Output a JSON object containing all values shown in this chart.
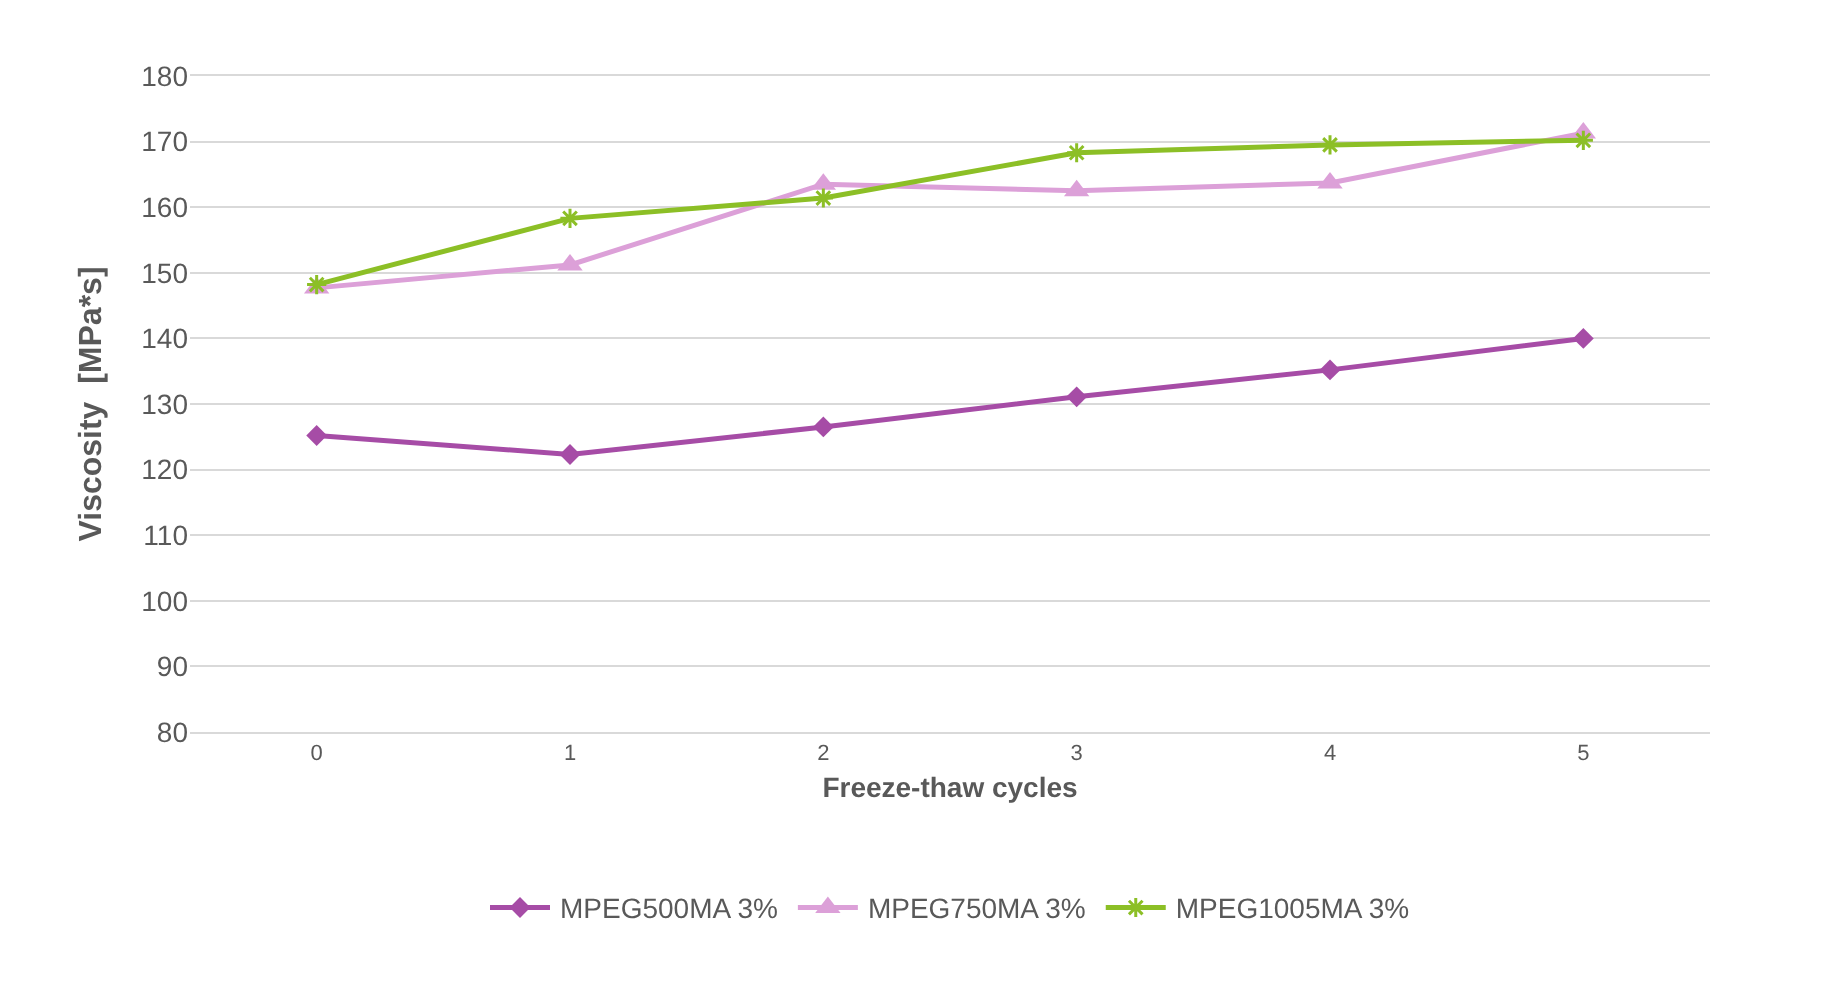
{
  "chart_data": {
    "type": "line",
    "xlabel": "Freeze-thaw cycles",
    "ylabel": "Viscosity  [MPa*s]",
    "categories": [
      "0",
      "1",
      "2",
      "3",
      "4",
      "5"
    ],
    "series": [
      {
        "name": "MPEG500MA 3%",
        "color": "#a64ca6",
        "marker": "diamond",
        "values": [
          125.2,
          122.3,
          126.5,
          131.1,
          135.2,
          140.0
        ]
      },
      {
        "name": "MPEG750MA 3%",
        "color": "#dca0d8",
        "marker": "triangle",
        "values": [
          147.7,
          151.2,
          163.5,
          162.5,
          163.7,
          171.3
        ]
      },
      {
        "name": "MPEG1005MA 3%",
        "color": "#8cbf26",
        "marker": "cross",
        "values": [
          148.2,
          158.3,
          161.4,
          168.3,
          169.5,
          170.2
        ]
      }
    ],
    "ylim": [
      80,
      180
    ],
    "yticks": [
      80,
      90,
      100,
      110,
      120,
      130,
      140,
      150,
      160,
      170,
      180
    ],
    "grid": "y",
    "legend": "bottom",
    "line_style": "solid"
  }
}
